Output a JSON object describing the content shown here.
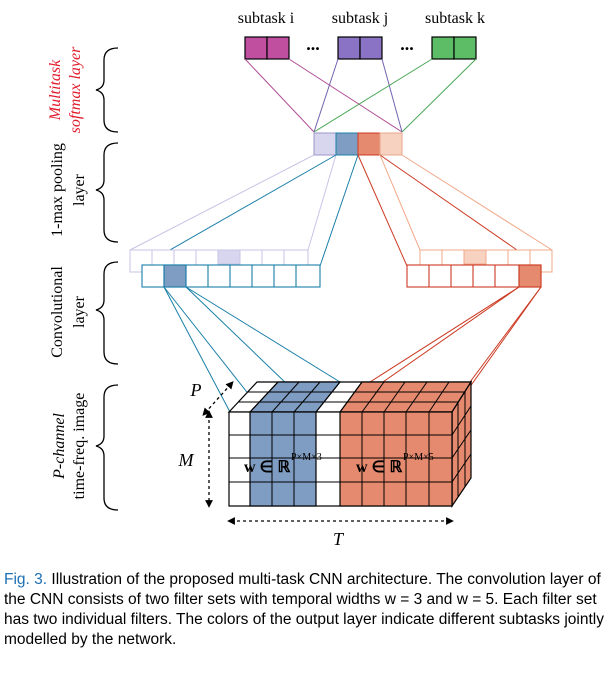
{
  "figure": {
    "subtasks": [
      "subtask i",
      "subtask j",
      "subtask k"
    ],
    "ellipsis": "...",
    "layer_labels": {
      "multitask_line1": "Multitask",
      "multitask_line2": "softmax layer",
      "pooling_line1": "1-max pooling",
      "pooling_line2": "layer",
      "conv_line1": "Convolutional",
      "conv_line2": "layer",
      "input_line1": "P-channel",
      "input_line2": "time-freq. image"
    },
    "dims": {
      "p": "P",
      "m": "M",
      "t": "T"
    },
    "filters": {
      "w3_main": "w ∈ ℝ",
      "w3_sup": "P×M×3",
      "w5_main": "w ∈ ℝ",
      "w5_sup": "P×M×5"
    },
    "colors": {
      "blue_fill": "#7f9dc2",
      "blue_line": "#1a7fa8",
      "salmon_fill": "#e58a6e",
      "salmon_line": "#cc3a22",
      "lavender": "#c8c4e6",
      "peach": "#f6c4ae",
      "magenta": "#c0509f",
      "purple": "#8a73c4",
      "green": "#5dbd67",
      "label_red": "#e21c2c"
    }
  },
  "caption": {
    "label": "Fig. 3.",
    "text": "Illustration of the proposed multi-task CNN architecture. The convolution layer of the CNN consists of two filter sets with temporal widths w = 3 and w = 5. Each filter set has two individual filters. The colors of the output layer indicate different subtasks jointly modelled by the network."
  }
}
